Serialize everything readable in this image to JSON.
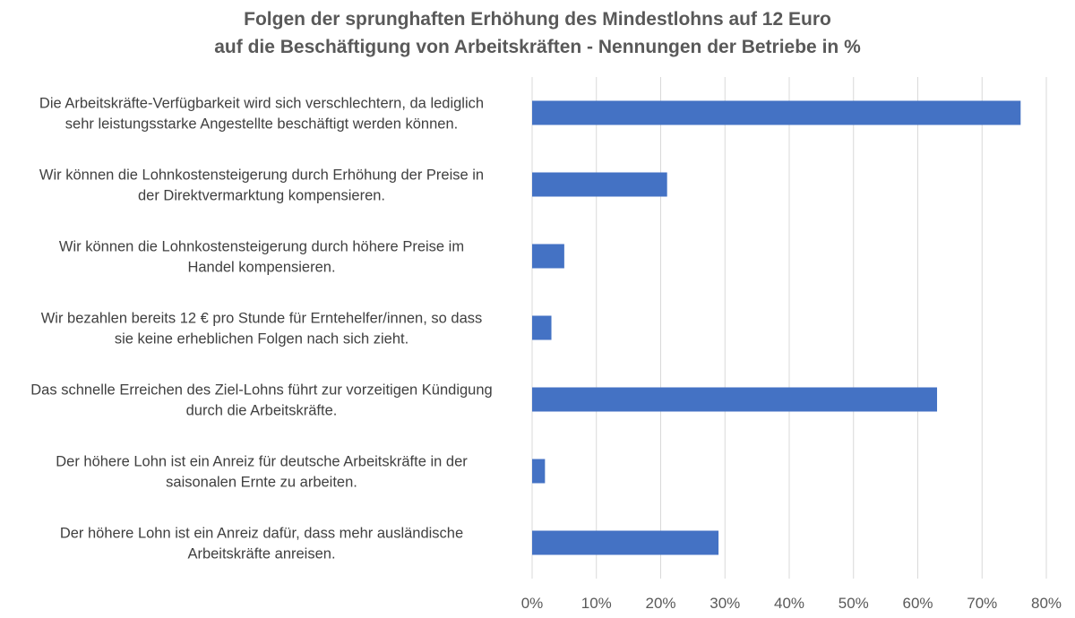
{
  "chart_data": {
    "type": "bar",
    "orientation": "horizontal",
    "title_lines": [
      "Folgen der sprunghaften Erhöhung des Mindestlohns auf 12 Euro",
      "auf die Beschäftigung von Arbeitskräften - Nennungen der Betriebe in %"
    ],
    "categories": [
      [
        "Die Arbeitskräfte-Verfügbarkeit wird sich verschlechtern, da lediglich",
        "sehr leistungsstarke Angestellte beschäftigt werden können."
      ],
      [
        "Wir können die Lohnkostensteigerung durch Erhöhung der Preise in",
        "der Direktvermarktung kompensieren."
      ],
      [
        "Wir können die Lohnkostensteigerung durch höhere Preise im",
        "Handel kompensieren."
      ],
      [
        "Wir bezahlen bereits 12 € pro Stunde für Erntehelfer/innen, so dass",
        "sie keine erheblichen Folgen nach sich zieht."
      ],
      [
        "Das schnelle Erreichen des Ziel-Lohns führt zur vorzeitigen Kündigung",
        "durch die Arbeitskräfte."
      ],
      [
        "Der höhere Lohn ist ein Anreiz für deutsche Arbeitskräfte in der",
        "saisonalen Ernte zu arbeiten."
      ],
      [
        "Der höhere Lohn ist ein Anreiz dafür, dass mehr ausländische",
        "Arbeitskräfte anreisen."
      ]
    ],
    "values": [
      76,
      21,
      5,
      3,
      63,
      2,
      29
    ],
    "xlim": [
      0,
      80
    ],
    "xticks": [
      0,
      10,
      20,
      30,
      40,
      50,
      60,
      70,
      80
    ],
    "tick_suffix": "%",
    "grid": "vertical",
    "bar_color": "#4472C4",
    "grid_color": "#D9D9D9"
  }
}
